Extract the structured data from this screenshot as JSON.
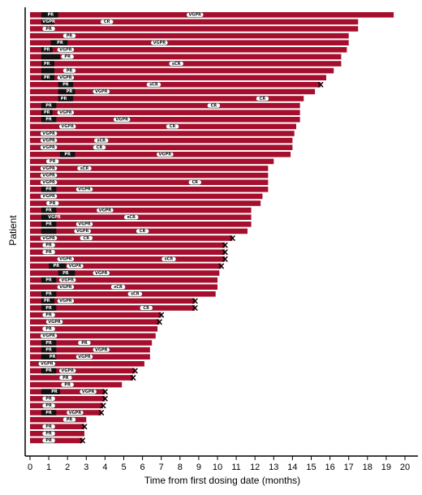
{
  "chart_data": {
    "type": "bar",
    "orientation": "horizontal",
    "xlabel": "Time from first dosing date (months)",
    "ylabel": "Patient",
    "xlim": [
      0,
      20
    ],
    "xticks": [
      0,
      1,
      2,
      3,
      4,
      5,
      6,
      7,
      8,
      9,
      10,
      11,
      12,
      13,
      14,
      15,
      16,
      17,
      18,
      19,
      20
    ],
    "colors": {
      "bar": "#a50f2d",
      "initial": "#111111",
      "pill": "#ffffff",
      "marker": "#000000"
    },
    "patients": [
      {
        "end": 19.4,
        "black": [
          0.6,
          1.5
        ],
        "x": false,
        "labels": [
          {
            "t": "PR",
            "at": 1.1
          },
          {
            "t": "VGPR",
            "at": 8.8
          }
        ]
      },
      {
        "end": 17.5,
        "black": [
          0.6,
          1.3
        ],
        "x": false,
        "labels": [
          {
            "t": "VGPR",
            "at": 1.0
          },
          {
            "t": "CR",
            "at": 4.1
          }
        ]
      },
      {
        "end": 17.5,
        "black": null,
        "x": false,
        "labels": [
          {
            "t": "PR",
            "at": 1.0
          }
        ]
      },
      {
        "end": 17.0,
        "black": null,
        "x": false,
        "labels": [
          {
            "t": "PR",
            "at": 2.1
          }
        ]
      },
      {
        "end": 17.0,
        "black": [
          1.1,
          2.0
        ],
        "x": false,
        "labels": [
          {
            "t": "PR",
            "at": 1.6
          },
          {
            "t": "VGPR",
            "at": 6.9
          }
        ]
      },
      {
        "end": 16.9,
        "black": [
          0.6,
          1.2
        ],
        "x": false,
        "labels": [
          {
            "t": "PR",
            "at": 0.9
          },
          {
            "t": "VGPR",
            "at": 1.9
          }
        ]
      },
      {
        "end": 16.6,
        "black": [
          0.6,
          1.6
        ],
        "x": false,
        "labels": [
          {
            "t": "PR",
            "at": 2.0
          }
        ]
      },
      {
        "end": 16.6,
        "black": [
          0.6,
          1.3
        ],
        "x": false,
        "labels": [
          {
            "t": "PR",
            "at": 0.9
          },
          {
            "t": "sCR",
            "at": 7.8
          }
        ]
      },
      {
        "end": 16.2,
        "black": [
          0.6,
          1.3
        ],
        "x": false,
        "labels": [
          {
            "t": "PR",
            "at": 2.1
          }
        ]
      },
      {
        "end": 15.8,
        "black": [
          0.6,
          1.3
        ],
        "x": false,
        "labels": [
          {
            "t": "PR",
            "at": 0.9
          },
          {
            "t": "VGPR",
            "at": 1.9
          }
        ]
      },
      {
        "end": 15.5,
        "black": [
          1.5,
          2.3
        ],
        "x": true,
        "labels": [
          {
            "t": "PR",
            "at": 1.9
          },
          {
            "t": "sCR",
            "at": 6.6
          }
        ]
      },
      {
        "end": 15.2,
        "black": [
          1.5,
          2.4
        ],
        "x": false,
        "labels": [
          {
            "t": "PR",
            "at": 2.1
          },
          {
            "t": "VGPR",
            "at": 3.8
          }
        ]
      },
      {
        "end": 14.6,
        "black": [
          1.5,
          2.3
        ],
        "x": false,
        "labels": [
          {
            "t": "PR",
            "at": 1.8
          },
          {
            "t": "CR",
            "at": 12.4
          }
        ]
      },
      {
        "end": 14.4,
        "black": [
          0.6,
          1.4
        ],
        "x": false,
        "labels": [
          {
            "t": "PR",
            "at": 1.0
          },
          {
            "t": "CR",
            "at": 9.8
          }
        ]
      },
      {
        "end": 14.4,
        "black": [
          0.6,
          1.2
        ],
        "x": false,
        "labels": [
          {
            "t": "PR",
            "at": 0.9
          },
          {
            "t": "VGPR",
            "at": 1.9
          }
        ]
      },
      {
        "end": 14.4,
        "black": [
          0.6,
          1.4
        ],
        "x": false,
        "labels": [
          {
            "t": "PR",
            "at": 1.0
          },
          {
            "t": "VGPR",
            "at": 4.9
          }
        ]
      },
      {
        "end": 14.2,
        "black": null,
        "x": false,
        "labels": [
          {
            "t": "VGPR",
            "at": 2.0
          },
          {
            "t": "CR",
            "at": 7.6
          }
        ]
      },
      {
        "end": 14.1,
        "black": null,
        "x": false,
        "labels": [
          {
            "t": "VGPR",
            "at": 1.0
          }
        ]
      },
      {
        "end": 14.0,
        "black": null,
        "x": false,
        "labels": [
          {
            "t": "VGPR",
            "at": 1.0
          },
          {
            "t": "sCR",
            "at": 3.8
          }
        ]
      },
      {
        "end": 14.0,
        "black": null,
        "x": false,
        "labels": [
          {
            "t": "VGPR",
            "at": 1.0
          },
          {
            "t": "CR",
            "at": 3.7
          }
        ]
      },
      {
        "end": 13.9,
        "black": [
          1.6,
          2.4
        ],
        "x": false,
        "labels": [
          {
            "t": "PR",
            "at": 2.0
          },
          {
            "t": "VGPR",
            "at": 7.2
          }
        ]
      },
      {
        "end": 13.0,
        "black": null,
        "x": false,
        "labels": [
          {
            "t": "PR",
            "at": 1.2
          }
        ]
      },
      {
        "end": 12.7,
        "black": null,
        "x": false,
        "labels": [
          {
            "t": "VGPR",
            "at": 1.0
          },
          {
            "t": "sCR",
            "at": 2.9
          }
        ]
      },
      {
        "end": 12.7,
        "black": null,
        "x": false,
        "labels": [
          {
            "t": "VGPR",
            "at": 1.0
          }
        ]
      },
      {
        "end": 12.7,
        "black": null,
        "x": false,
        "labels": [
          {
            "t": "VGPR",
            "at": 1.0
          },
          {
            "t": "CR",
            "at": 8.8
          }
        ]
      },
      {
        "end": 12.7,
        "black": [
          0.6,
          1.4
        ],
        "x": false,
        "labels": [
          {
            "t": "PR",
            "at": 1.0
          },
          {
            "t": "VGPR",
            "at": 2.9
          }
        ]
      },
      {
        "end": 12.4,
        "black": null,
        "x": false,
        "labels": [
          {
            "t": "VGPR",
            "at": 1.0
          }
        ]
      },
      {
        "end": 12.3,
        "black": null,
        "x": false,
        "labels": [
          {
            "t": "PR",
            "at": 1.2
          }
        ]
      },
      {
        "end": 11.8,
        "black": [
          0.6,
          1.4
        ],
        "x": false,
        "labels": [
          {
            "t": "PR",
            "at": 1.0
          },
          {
            "t": "VGPR",
            "at": 4.0
          }
        ]
      },
      {
        "end": 11.8,
        "black": [
          0.6,
          1.4
        ],
        "x": false,
        "labels": [
          {
            "t": "VGPR",
            "at": 1.3
          },
          {
            "t": "sCR",
            "at": 5.4
          }
        ]
      },
      {
        "end": 11.8,
        "black": [
          0.6,
          1.4
        ],
        "x": false,
        "labels": [
          {
            "t": "PR",
            "at": 1.0
          },
          {
            "t": "VGPR",
            "at": 2.9
          }
        ]
      },
      {
        "end": 11.6,
        "black": [
          0.6,
          1.4
        ],
        "x": false,
        "labels": [
          {
            "t": "VGPR",
            "at": 2.8
          },
          {
            "t": "CR",
            "at": 6.0
          }
        ]
      },
      {
        "end": 10.8,
        "black": null,
        "x": true,
        "labels": [
          {
            "t": "VGPR",
            "at": 1.0
          },
          {
            "t": "CR",
            "at": 3.0
          }
        ]
      },
      {
        "end": 10.4,
        "black": null,
        "x": true,
        "labels": [
          {
            "t": "PR",
            "at": 1.0
          }
        ]
      },
      {
        "end": 10.4,
        "black": null,
        "x": true,
        "labels": [
          {
            "t": "PR",
            "at": 1.0
          }
        ]
      },
      {
        "end": 10.4,
        "black": null,
        "x": true,
        "labels": [
          {
            "t": "VGPR",
            "at": 1.9
          },
          {
            "t": "sCR",
            "at": 7.4
          }
        ]
      },
      {
        "end": 10.2,
        "black": [
          1.0,
          1.9
        ],
        "x": true,
        "labels": [
          {
            "t": "PR",
            "at": 1.4
          },
          {
            "t": "VGPR",
            "at": 2.4
          }
        ]
      },
      {
        "end": 10.1,
        "black": [
          1.5,
          2.4
        ],
        "x": false,
        "labels": [
          {
            "t": "PR",
            "at": 1.9
          },
          {
            "t": "VGPR",
            "at": 3.8
          }
        ]
      },
      {
        "end": 10.0,
        "black": [
          0.6,
          1.4
        ],
        "x": false,
        "labels": [
          {
            "t": "PR",
            "at": 1.0
          },
          {
            "t": "VGPR",
            "at": 2.0
          }
        ]
      },
      {
        "end": 10.0,
        "black": null,
        "x": false,
        "labels": [
          {
            "t": "VGPR",
            "at": 1.9
          },
          {
            "t": "sCR",
            "at": 4.7
          }
        ]
      },
      {
        "end": 9.9,
        "black": [
          0.6,
          1.4
        ],
        "x": false,
        "labels": [
          {
            "t": "PR",
            "at": 1.0
          },
          {
            "t": "sCR",
            "at": 5.6
          }
        ]
      },
      {
        "end": 8.8,
        "black": [
          0.6,
          1.3
        ],
        "x": true,
        "labels": [
          {
            "t": "PR",
            "at": 0.9
          },
          {
            "t": "VGPR",
            "at": 1.9
          }
        ]
      },
      {
        "end": 8.8,
        "black": [
          0.6,
          1.4
        ],
        "x": true,
        "labels": [
          {
            "t": "PR",
            "at": 1.0
          },
          {
            "t": "CR",
            "at": 6.2
          }
        ]
      },
      {
        "end": 7.0,
        "black": null,
        "x": true,
        "labels": [
          {
            "t": "PR",
            "at": 1.0
          }
        ]
      },
      {
        "end": 6.9,
        "black": null,
        "x": true,
        "labels": [
          {
            "t": "VGPR",
            "at": 1.3
          }
        ]
      },
      {
        "end": 6.8,
        "black": null,
        "x": false,
        "labels": [
          {
            "t": "PR",
            "at": 1.0
          }
        ]
      },
      {
        "end": 6.7,
        "black": null,
        "x": false,
        "labels": [
          {
            "t": "VGPR",
            "at": 1.0
          }
        ]
      },
      {
        "end": 6.5,
        "black": [
          0.6,
          1.4
        ],
        "x": false,
        "labels": [
          {
            "t": "PR",
            "at": 1.0
          },
          {
            "t": "PR",
            "at": 2.9
          }
        ]
      },
      {
        "end": 6.4,
        "black": [
          0.6,
          1.4
        ],
        "x": false,
        "labels": [
          {
            "t": "PR",
            "at": 1.0
          },
          {
            "t": "VGPR",
            "at": 3.8
          }
        ]
      },
      {
        "end": 6.4,
        "black": [
          0.6,
          1.4
        ],
        "x": false,
        "labels": [
          {
            "t": "PR",
            "at": 1.2
          },
          {
            "t": "VGPR",
            "at": 2.9
          }
        ]
      },
      {
        "end": 6.1,
        "black": null,
        "x": false,
        "labels": [
          {
            "t": "VGPR",
            "at": 0.9
          }
        ]
      },
      {
        "end": 5.6,
        "black": [
          0.6,
          1.4
        ],
        "x": true,
        "labels": [
          {
            "t": "PR",
            "at": 1.0
          },
          {
            "t": "VGPR",
            "at": 2.0
          }
        ]
      },
      {
        "end": 5.5,
        "black": null,
        "x": true,
        "labels": [
          {
            "t": "PR",
            "at": 1.9
          }
        ]
      },
      {
        "end": 4.9,
        "black": null,
        "x": false,
        "labels": [
          {
            "t": "PR",
            "at": 2.0
          }
        ]
      },
      {
        "end": 4.0,
        "black": [
          0.6,
          1.6
        ],
        "x": true,
        "labels": [
          {
            "t": "PR",
            "at": 1.3
          },
          {
            "t": "VGPR",
            "at": 3.1
          }
        ]
      },
      {
        "end": 4.0,
        "black": null,
        "x": true,
        "labels": [
          {
            "t": "PR",
            "at": 1.0
          }
        ]
      },
      {
        "end": 3.9,
        "black": null,
        "x": true,
        "labels": [
          {
            "t": "PR",
            "at": 1.0
          }
        ]
      },
      {
        "end": 3.8,
        "black": [
          0.6,
          1.4
        ],
        "x": true,
        "labels": [
          {
            "t": "PR",
            "at": 1.0
          },
          {
            "t": "VGPR",
            "at": 2.4
          }
        ]
      },
      {
        "end": 3.0,
        "black": null,
        "x": false,
        "labels": [
          {
            "t": "PR",
            "at": 2.1
          }
        ]
      },
      {
        "end": 2.9,
        "black": null,
        "x": true,
        "labels": [
          {
            "t": "PR",
            "at": 1.0
          }
        ]
      },
      {
        "end": 2.9,
        "black": null,
        "x": false,
        "labels": [
          {
            "t": "PR",
            "at": 1.0
          }
        ]
      },
      {
        "end": 2.8,
        "black": null,
        "x": true,
        "labels": [
          {
            "t": "PR",
            "at": 1.0
          }
        ]
      }
    ]
  }
}
